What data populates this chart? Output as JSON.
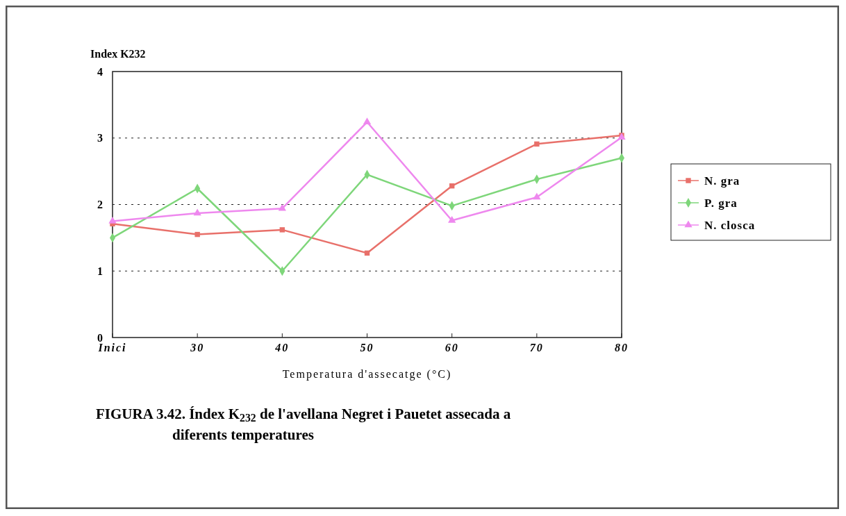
{
  "chart_data": {
    "type": "line",
    "title": "FIGURA 3.42. Índex K$_{232}$ de l'avellana Negret i Pauetet assecada a diferents temperatures",
    "xlabel": "Temperatura d'assecatge (°C)",
    "ylabel": "Index K232",
    "categories": [
      "Inici",
      "30",
      "40",
      "50",
      "60",
      "70",
      "80"
    ],
    "series": [
      {
        "name": "N. gra",
        "color": "#e8706a",
        "marker": "square",
        "values": [
          1.71,
          1.55,
          1.62,
          1.27,
          2.28,
          2.91,
          3.04
        ]
      },
      {
        "name": "P. gra",
        "color": "#7ed67a",
        "marker": "diamond",
        "values": [
          1.5,
          2.24,
          1.0,
          2.45,
          1.98,
          2.38,
          2.7
        ]
      },
      {
        "name": "N. closca",
        "color": "#ee88ee",
        "marker": "triangle",
        "values": [
          1.75,
          1.87,
          1.94,
          3.24,
          1.76,
          2.11,
          3.01
        ]
      }
    ],
    "ylim": [
      0,
      4
    ],
    "yticks": [
      0,
      1,
      2,
      3,
      4
    ],
    "grid": "y",
    "legend": "right"
  }
}
